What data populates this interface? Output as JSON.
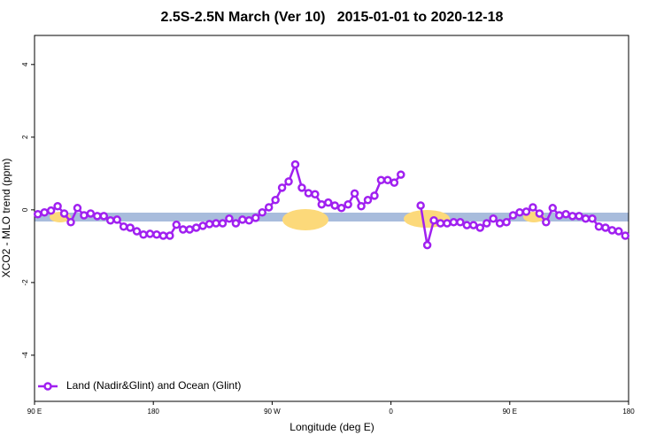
{
  "chart_data": {
    "type": "line",
    "title": "2.5S-2.5N March (Ver 10)   2015-01-01 to 2020-12-18",
    "x_label": "Longitude (deg E)",
    "y_label": "XCO2 - MLO trend (ppm)",
    "x": [
      92.5,
      97.5,
      102.5,
      107.5,
      112.5,
      117.5,
      122.5,
      127.5,
      132.5,
      137.5,
      142.5,
      147.5,
      152.5,
      157.5,
      162.5,
      167.5,
      172.5,
      177.5,
      182.5,
      187.5,
      192.5,
      197.5,
      202.5,
      207.5,
      212.5,
      217.5,
      222.5,
      227.5,
      232.5,
      237.5,
      242.5,
      247.5,
      252.5,
      257.5,
      262.5,
      267.5,
      272.5,
      277.5,
      282.5,
      287.5,
      292.5,
      297.5,
      302.5,
      307.5,
      312.5,
      317.5,
      322.5,
      327.5,
      332.5,
      337.5,
      342.5,
      347.5,
      352.5,
      357.5,
      362.5,
      367.5,
      372.5,
      377.5,
      382.5,
      387.5,
      392.5,
      397.5,
      402.5,
      407.5,
      412.5,
      417.5,
      422.5,
      427.5,
      432.5,
      437.5,
      442.5,
      447.5,
      452.5,
      457.5,
      462.5,
      467.5,
      472.5,
      477.5,
      482.5,
      487.5,
      492.5,
      497.5,
      502.5,
      507.5,
      512.5,
      517.5,
      522.5,
      527.5,
      532.5,
      537.5
    ],
    "series": [
      {
        "name": "Land (Nadir&Glint) and Ocean (Glint)",
        "color": "#a020f0",
        "values": [
          -0.12,
          -0.07,
          -0.02,
          0.1,
          -0.1,
          -0.34,
          0.05,
          -0.15,
          -0.1,
          -0.17,
          -0.17,
          -0.29,
          -0.27,
          -0.46,
          -0.49,
          -0.59,
          -0.68,
          -0.66,
          -0.68,
          -0.71,
          -0.71,
          -0.41,
          -0.54,
          -0.54,
          -0.49,
          -0.44,
          -0.39,
          -0.37,
          -0.37,
          -0.24,
          -0.37,
          -0.27,
          -0.29,
          -0.22,
          -0.07,
          0.07,
          0.27,
          0.61,
          0.78,
          1.25,
          0.61,
          0.46,
          0.43,
          0.15,
          0.2,
          0.12,
          0.05,
          0.15,
          0.45,
          0.1,
          0.27,
          0.39,
          0.82,
          0.82,
          0.75,
          0.97,
          null,
          null,
          0.12,
          -0.97,
          -0.29,
          -0.37,
          -0.37,
          -0.34,
          -0.34,
          -0.42,
          -0.42,
          -0.49,
          -0.37,
          -0.24,
          -0.37,
          -0.34,
          -0.15,
          -0.07,
          -0.05,
          0.07,
          -0.1,
          -0.34,
          0.05,
          -0.15,
          -0.12,
          -0.17,
          -0.17,
          -0.24,
          -0.24,
          -0.46,
          -0.49,
          -0.56,
          -0.59,
          -0.71
        ]
      }
    ],
    "xlim": [
      90,
      540
    ],
    "ylim": [
      -5.27,
      4.8
    ],
    "xticks": [
      {
        "value": 90,
        "label": "90 E"
      },
      180,
      {
        "value": 270,
        "label": "90 W"
      },
      {
        "value": 360,
        "label": "0"
      },
      {
        "value": 450,
        "label": "90 E"
      },
      {
        "value": 540,
        "label": "180"
      }
    ],
    "yticks": [
      -4,
      -2,
      0,
      2,
      4
    ],
    "legend": "bottom-left"
  }
}
